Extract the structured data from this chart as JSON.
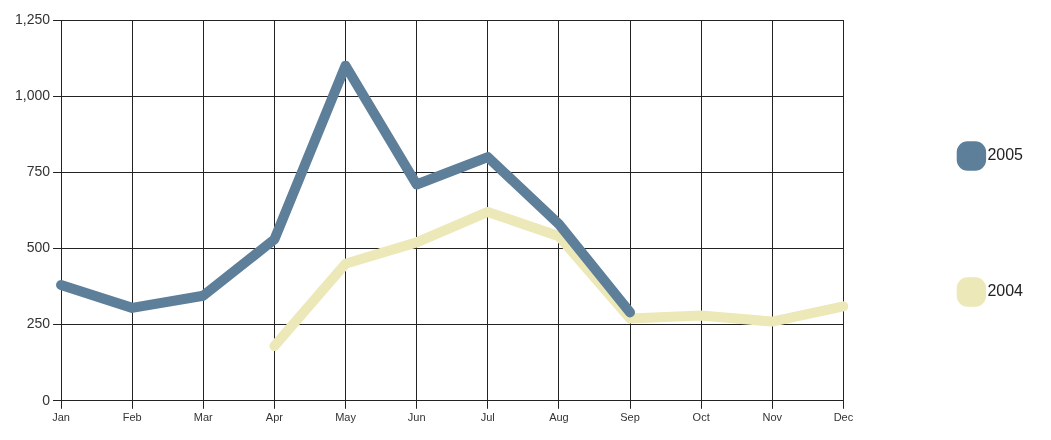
{
  "chart_data": {
    "type": "line",
    "categories": [
      "Jan",
      "Feb",
      "Mar",
      "Apr",
      "May",
      "Jun",
      "Jul",
      "Aug",
      "Sep",
      "Oct",
      "Nov",
      "Dec"
    ],
    "series": [
      {
        "name": "2005",
        "color": "#5e7f99",
        "values": [
          380,
          305,
          345,
          530,
          1100,
          710,
          800,
          580,
          290,
          null,
          null,
          null
        ]
      },
      {
        "name": "2004",
        "color": "#ede8b8",
        "values": [
          null,
          null,
          null,
          180,
          450,
          520,
          620,
          540,
          270,
          280,
          260,
          310
        ]
      }
    ],
    "ylim": [
      0,
      1250
    ],
    "yticks": [
      0,
      250,
      500,
      {
        "value": 750,
        "label": "750"
      },
      {
        "value": 1000,
        "label": "1,000"
      },
      {
        "value": 1250,
        "label": "1,250"
      }
    ],
    "grid": true,
    "legend": "right",
    "marker": "none",
    "line_style": "solid"
  }
}
